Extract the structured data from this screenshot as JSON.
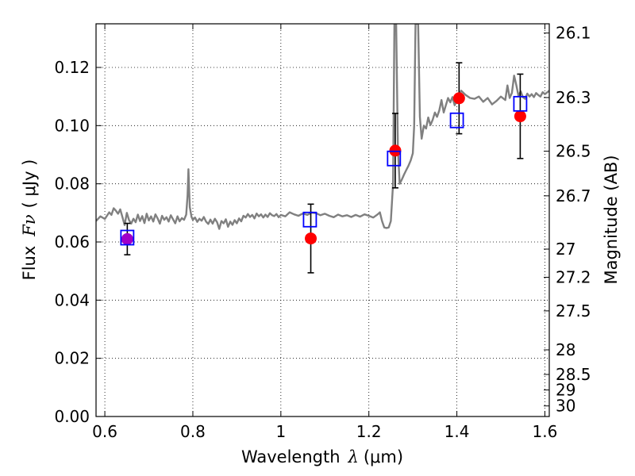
{
  "chart_data": {
    "type": "scatter",
    "xlabel": {
      "prefix": "Wavelength",
      "symbol": "λ",
      "unit": "(μm)"
    },
    "ylabel": {
      "prefix": "Flux",
      "symbol": "Fν",
      "unit": "( μJy )"
    },
    "ylabel_right": "Magnitude (AB)",
    "xlim": [
      0.58,
      1.61
    ],
    "ylim": [
      0.0,
      0.135
    ],
    "grid": true,
    "x_ticks": [
      {
        "value": 0.6,
        "label": "0.6"
      },
      {
        "value": 0.8,
        "label": "0.8"
      },
      {
        "value": 1.0,
        "label": "1"
      },
      {
        "value": 1.2,
        "label": "1.2"
      },
      {
        "value": 1.4,
        "label": "1.4"
      },
      {
        "value": 1.6,
        "label": "1.6"
      }
    ],
    "y_ticks": [
      {
        "value": 0.0,
        "label": "0.00"
      },
      {
        "value": 0.02,
        "label": "0.02"
      },
      {
        "value": 0.04,
        "label": "0.04"
      },
      {
        "value": 0.06,
        "label": "0.06"
      },
      {
        "value": 0.08,
        "label": "0.08"
      },
      {
        "value": 0.1,
        "label": "0.10"
      },
      {
        "value": 0.12,
        "label": "0.12"
      }
    ],
    "mag_ticks": [
      {
        "value": 26.1,
        "label": "26.1"
      },
      {
        "value": 26.3,
        "label": "26.3"
      },
      {
        "value": 26.5,
        "label": "26.5"
      },
      {
        "value": 26.7,
        "label": "26.7"
      },
      {
        "value": 27.0,
        "label": "27"
      },
      {
        "value": 27.2,
        "label": "27.2"
      },
      {
        "value": 27.5,
        "label": "27.5"
      },
      {
        "value": 28.0,
        "label": "28"
      },
      {
        "value": 28.5,
        "label": "28.5"
      },
      {
        "value": 29.0,
        "label": "29"
      },
      {
        "value": 30.0,
        "label": "30"
      }
    ],
    "observed": [
      {
        "x": 1.068,
        "y": 0.0612,
        "err": 0.0118
      },
      {
        "x": 1.26,
        "y": 0.0914,
        "err": 0.0128
      },
      {
        "x": 1.405,
        "y": 0.1094,
        "err": 0.0122
      },
      {
        "x": 1.544,
        "y": 0.1032,
        "err": 0.0145
      },
      {
        "x": 0.651,
        "y": 0.061,
        "err": 0.0054
      }
    ],
    "model_points": [
      {
        "x": 0.651,
        "y": 0.0615
      },
      {
        "x": 1.066,
        "y": 0.0677
      },
      {
        "x": 1.257,
        "y": 0.0887
      },
      {
        "x": 1.4,
        "y": 0.1018
      },
      {
        "x": 1.544,
        "y": 0.1075
      }
    ],
    "spectrum": [
      [
        0.58,
        0.0672
      ],
      [
        0.59,
        0.0688
      ],
      [
        0.6,
        0.0679
      ],
      [
        0.61,
        0.0702
      ],
      [
        0.615,
        0.0693
      ],
      [
        0.62,
        0.0716
      ],
      [
        0.625,
        0.0708
      ],
      [
        0.63,
        0.0697
      ],
      [
        0.635,
        0.0712
      ],
      [
        0.64,
        0.0685
      ],
      [
        0.645,
        0.0658
      ],
      [
        0.65,
        0.07
      ],
      [
        0.655,
        0.0675
      ],
      [
        0.66,
        0.0663
      ],
      [
        0.665,
        0.068
      ],
      [
        0.67,
        0.0668
      ],
      [
        0.675,
        0.0694
      ],
      [
        0.68,
        0.0672
      ],
      [
        0.685,
        0.0689
      ],
      [
        0.69,
        0.0665
      ],
      [
        0.695,
        0.0697
      ],
      [
        0.7,
        0.0674
      ],
      [
        0.705,
        0.0688
      ],
      [
        0.71,
        0.067
      ],
      [
        0.715,
        0.0695
      ],
      [
        0.72,
        0.0681
      ],
      [
        0.725,
        0.0663
      ],
      [
        0.73,
        0.069
      ],
      [
        0.735,
        0.0676
      ],
      [
        0.74,
        0.0685
      ],
      [
        0.745,
        0.067
      ],
      [
        0.75,
        0.0692
      ],
      [
        0.755,
        0.0678
      ],
      [
        0.76,
        0.0664
      ],
      [
        0.765,
        0.0688
      ],
      [
        0.77,
        0.0671
      ],
      [
        0.775,
        0.0682
      ],
      [
        0.78,
        0.0676
      ],
      [
        0.785,
        0.0694
      ],
      [
        0.788,
        0.076
      ],
      [
        0.79,
        0.085
      ],
      [
        0.793,
        0.072
      ],
      [
        0.797,
        0.0686
      ],
      [
        0.8,
        0.0676
      ],
      [
        0.805,
        0.0684
      ],
      [
        0.81,
        0.0669
      ],
      [
        0.815,
        0.068
      ],
      [
        0.82,
        0.0673
      ],
      [
        0.825,
        0.0686
      ],
      [
        0.83,
        0.067
      ],
      [
        0.835,
        0.0662
      ],
      [
        0.84,
        0.0677
      ],
      [
        0.845,
        0.0663
      ],
      [
        0.85,
        0.068
      ],
      [
        0.855,
        0.0668
      ],
      [
        0.86,
        0.0645
      ],
      [
        0.865,
        0.0672
      ],
      [
        0.87,
        0.0664
      ],
      [
        0.875,
        0.0678
      ],
      [
        0.88,
        0.0652
      ],
      [
        0.885,
        0.067
      ],
      [
        0.89,
        0.0659
      ],
      [
        0.895,
        0.0675
      ],
      [
        0.9,
        0.0664
      ],
      [
        0.905,
        0.0681
      ],
      [
        0.91,
        0.0671
      ],
      [
        0.915,
        0.069
      ],
      [
        0.92,
        0.0684
      ],
      [
        0.925,
        0.0696
      ],
      [
        0.93,
        0.0686
      ],
      [
        0.935,
        0.0693
      ],
      [
        0.94,
        0.0681
      ],
      [
        0.945,
        0.0698
      ],
      [
        0.95,
        0.0688
      ],
      [
        0.955,
        0.0695
      ],
      [
        0.96,
        0.0684
      ],
      [
        0.965,
        0.0694
      ],
      [
        0.97,
        0.0686
      ],
      [
        0.975,
        0.0699
      ],
      [
        0.98,
        0.0692
      ],
      [
        0.985,
        0.0689
      ],
      [
        0.99,
        0.0696
      ],
      [
        0.995,
        0.0685
      ],
      [
        1.0,
        0.0693
      ],
      [
        1.01,
        0.0688
      ],
      [
        1.02,
        0.0702
      ],
      [
        1.03,
        0.0695
      ],
      [
        1.04,
        0.069
      ],
      [
        1.05,
        0.0698
      ],
      [
        1.06,
        0.0693
      ],
      [
        1.07,
        0.0701
      ],
      [
        1.08,
        0.0699
      ],
      [
        1.09,
        0.0692
      ],
      [
        1.1,
        0.0697
      ],
      [
        1.11,
        0.069
      ],
      [
        1.12,
        0.0685
      ],
      [
        1.13,
        0.0694
      ],
      [
        1.14,
        0.0688
      ],
      [
        1.15,
        0.0692
      ],
      [
        1.16,
        0.0686
      ],
      [
        1.17,
        0.0693
      ],
      [
        1.18,
        0.0687
      ],
      [
        1.19,
        0.0695
      ],
      [
        1.2,
        0.069
      ],
      [
        1.21,
        0.0684
      ],
      [
        1.22,
        0.0695
      ],
      [
        1.225,
        0.0702
      ],
      [
        1.23,
        0.0672
      ],
      [
        1.235,
        0.065
      ],
      [
        1.24,
        0.0648
      ],
      [
        1.245,
        0.065
      ],
      [
        1.25,
        0.0672
      ],
      [
        1.255,
        0.08
      ],
      [
        1.258,
        0.135
      ],
      [
        1.262,
        0.135
      ],
      [
        1.266,
        0.092
      ],
      [
        1.27,
        0.08
      ],
      [
        1.275,
        0.0815
      ],
      [
        1.28,
        0.0832
      ],
      [
        1.285,
        0.0847
      ],
      [
        1.29,
        0.0862
      ],
      [
        1.295,
        0.088
      ],
      [
        1.3,
        0.0905
      ],
      [
        1.303,
        0.1
      ],
      [
        1.306,
        0.135
      ],
      [
        1.312,
        0.135
      ],
      [
        1.316,
        0.103
      ],
      [
        1.32,
        0.0955
      ],
      [
        1.325,
        0.1
      ],
      [
        1.33,
        0.099
      ],
      [
        1.335,
        0.1028
      ],
      [
        1.34,
        0.1002
      ],
      [
        1.345,
        0.102
      ],
      [
        1.35,
        0.1045
      ],
      [
        1.355,
        0.103
      ],
      [
        1.36,
        0.1052
      ],
      [
        1.365,
        0.1088
      ],
      [
        1.37,
        0.1045
      ],
      [
        1.375,
        0.107
      ],
      [
        1.38,
        0.1095
      ],
      [
        1.385,
        0.108
      ],
      [
        1.39,
        0.1098
      ],
      [
        1.395,
        0.107
      ],
      [
        1.4,
        0.1088
      ],
      [
        1.41,
        0.112
      ],
      [
        1.42,
        0.1105
      ],
      [
        1.43,
        0.1095
      ],
      [
        1.44,
        0.1092
      ],
      [
        1.45,
        0.11
      ],
      [
        1.46,
        0.1082
      ],
      [
        1.47,
        0.1095
      ],
      [
        1.48,
        0.1073
      ],
      [
        1.49,
        0.1085
      ],
      [
        1.5,
        0.11
      ],
      [
        1.51,
        0.1088
      ],
      [
        1.515,
        0.1138
      ],
      [
        1.52,
        0.1095
      ],
      [
        1.525,
        0.1112
      ],
      [
        1.53,
        0.1172
      ],
      [
        1.535,
        0.114
      ],
      [
        1.54,
        0.1102
      ],
      [
        1.545,
        0.1118
      ],
      [
        1.55,
        0.1098
      ],
      [
        1.555,
        0.1092
      ],
      [
        1.56,
        0.111
      ],
      [
        1.565,
        0.11
      ],
      [
        1.57,
        0.1108
      ],
      [
        1.575,
        0.1098
      ],
      [
        1.58,
        0.1112
      ],
      [
        1.585,
        0.1105
      ],
      [
        1.59,
        0.11
      ],
      [
        1.595,
        0.1115
      ],
      [
        1.6,
        0.1108
      ],
      [
        1.61,
        0.112
      ]
    ],
    "colors": {
      "spectrum": "#808080",
      "observed": "#ff0000",
      "errorbar": "#000000",
      "model": "#0000ff",
      "overlap": "#a000c8",
      "grid": "#000000"
    }
  }
}
